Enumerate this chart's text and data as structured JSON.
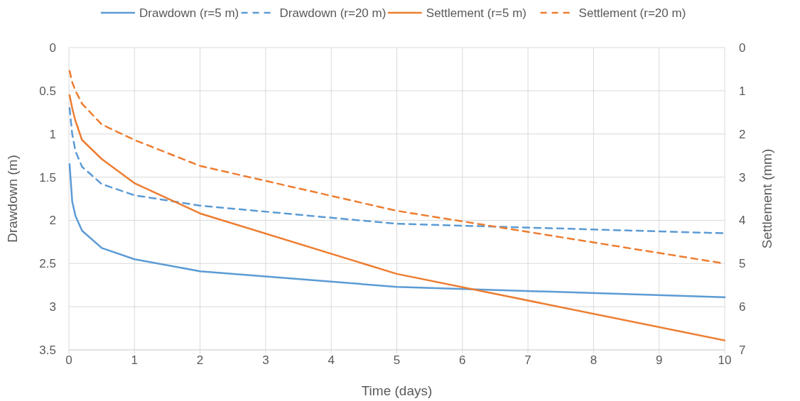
{
  "chart_data": {
    "type": "line",
    "xlabel": "Time (days)",
    "ylabel": "Drawdown (m)",
    "y2label": "Settlement (mm)",
    "x": [
      0.01,
      0.05,
      0.1,
      0.2,
      0.5,
      1,
      2,
      5,
      10
    ],
    "series": [
      {
        "name": "Drawdown (r=5 m)",
        "color": "#5b9bd5",
        "line_style": "solid",
        "values": [
          1.35,
          1.78,
          1.95,
          2.12,
          2.32,
          2.45,
          2.59,
          2.77,
          2.89
        ]
      },
      {
        "name": "Drawdown (r=20 m)",
        "color": "#5b9bd5",
        "line_style": "dashed",
        "values": [
          0.7,
          1.0,
          1.2,
          1.38,
          1.58,
          1.71,
          1.83,
          2.04,
          2.15
        ]
      },
      {
        "name": "Settlement (r=5 m)",
        "color": "#ed7d31",
        "line_style": "solid",
        "axis": "y2",
        "values": [
          1.1,
          1.4,
          1.7,
          2.14,
          2.58,
          3.14,
          3.84,
          5.24,
          6.78
        ]
      },
      {
        "name": "Settlement (r=20 m)",
        "color": "#ed7d31",
        "line_style": "dashed",
        "axis": "y2",
        "values": [
          0.54,
          0.8,
          1.0,
          1.3,
          1.78,
          2.14,
          2.74,
          3.78,
          5.0
        ]
      }
    ],
    "xlim": [
      0,
      10
    ],
    "xticks": [
      0,
      1,
      2,
      3,
      4,
      5,
      6,
      7,
      8,
      9,
      10
    ],
    "ylim": [
      3.5,
      0
    ],
    "yticks": [
      0,
      0.5,
      1,
      1.5,
      2,
      2.5,
      3,
      3.5
    ],
    "y2lim": [
      7,
      0
    ],
    "y2ticks": [
      0,
      1,
      2,
      3,
      4,
      5,
      6,
      7
    ],
    "grid": true,
    "legend": "top",
    "marker": "none"
  }
}
